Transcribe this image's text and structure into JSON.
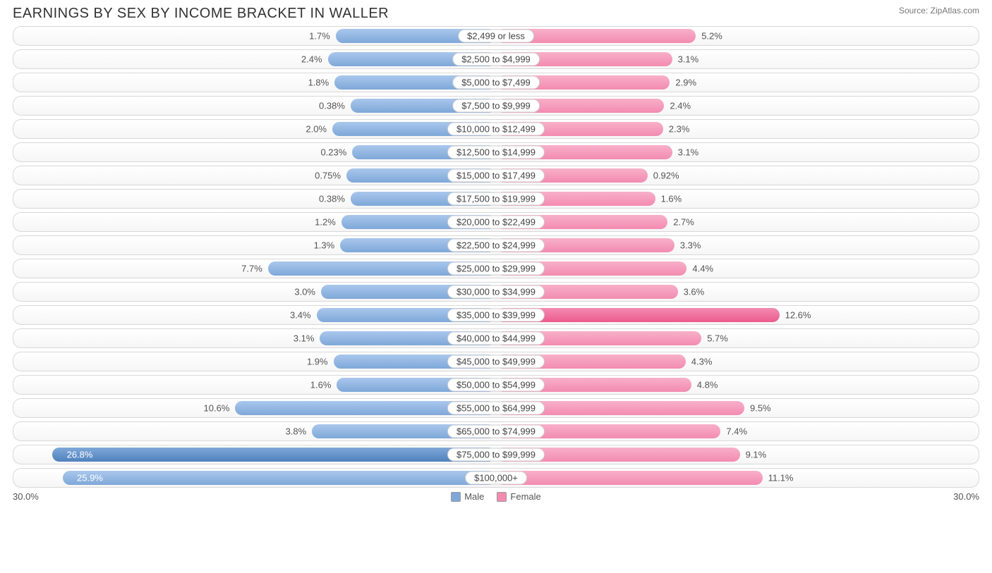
{
  "title": "EARNINGS BY SEX BY INCOME BRACKET IN WALLER",
  "source": "Source: ZipAtlas.com",
  "chart": {
    "type": "diverging-bar",
    "axis_max": 30.0,
    "axis_label_left": "30.0%",
    "axis_label_right": "30.0%",
    "male_color": "#7fa8d9",
    "male_max_color": "#4f81bd",
    "female_color": "#f38bb0",
    "female_max_color": "#ec5a8d",
    "row_border_color": "#d8d8d8",
    "row_bg_gradient": [
      "#ffffff",
      "#f6f6f6"
    ],
    "label_fontsize": 13,
    "title_fontsize": 20,
    "rows": [
      {
        "label": "$2,499 or less",
        "male": 1.7,
        "male_str": "1.7%",
        "female": 5.2,
        "female_str": "5.2%"
      },
      {
        "label": "$2,500 to $4,999",
        "male": 2.4,
        "male_str": "2.4%",
        "female": 3.1,
        "female_str": "3.1%"
      },
      {
        "label": "$5,000 to $7,499",
        "male": 1.8,
        "male_str": "1.8%",
        "female": 2.9,
        "female_str": "2.9%"
      },
      {
        "label": "$7,500 to $9,999",
        "male": 0.38,
        "male_str": "0.38%",
        "female": 2.4,
        "female_str": "2.4%"
      },
      {
        "label": "$10,000 to $12,499",
        "male": 2.0,
        "male_str": "2.0%",
        "female": 2.3,
        "female_str": "2.3%"
      },
      {
        "label": "$12,500 to $14,999",
        "male": 0.23,
        "male_str": "0.23%",
        "female": 3.1,
        "female_str": "3.1%"
      },
      {
        "label": "$15,000 to $17,499",
        "male": 0.75,
        "male_str": "0.75%",
        "female": 0.92,
        "female_str": "0.92%"
      },
      {
        "label": "$17,500 to $19,999",
        "male": 0.38,
        "male_str": "0.38%",
        "female": 1.6,
        "female_str": "1.6%"
      },
      {
        "label": "$20,000 to $22,499",
        "male": 1.2,
        "male_str": "1.2%",
        "female": 2.7,
        "female_str": "2.7%"
      },
      {
        "label": "$22,500 to $24,999",
        "male": 1.3,
        "male_str": "1.3%",
        "female": 3.3,
        "female_str": "3.3%"
      },
      {
        "label": "$25,000 to $29,999",
        "male": 7.7,
        "male_str": "7.7%",
        "female": 4.4,
        "female_str": "4.4%"
      },
      {
        "label": "$30,000 to $34,999",
        "male": 3.0,
        "male_str": "3.0%",
        "female": 3.6,
        "female_str": "3.6%"
      },
      {
        "label": "$35,000 to $39,999",
        "male": 3.4,
        "male_str": "3.4%",
        "female": 12.6,
        "female_str": "12.6%"
      },
      {
        "label": "$40,000 to $44,999",
        "male": 3.1,
        "male_str": "3.1%",
        "female": 5.7,
        "female_str": "5.7%"
      },
      {
        "label": "$45,000 to $49,999",
        "male": 1.9,
        "male_str": "1.9%",
        "female": 4.3,
        "female_str": "4.3%"
      },
      {
        "label": "$50,000 to $54,999",
        "male": 1.6,
        "male_str": "1.6%",
        "female": 4.8,
        "female_str": "4.8%"
      },
      {
        "label": "$55,000 to $64,999",
        "male": 10.6,
        "male_str": "10.6%",
        "female": 9.5,
        "female_str": "9.5%"
      },
      {
        "label": "$65,000 to $74,999",
        "male": 3.8,
        "male_str": "3.8%",
        "female": 7.4,
        "female_str": "7.4%"
      },
      {
        "label": "$75,000 to $99,999",
        "male": 26.8,
        "male_str": "26.8%",
        "female": 9.1,
        "female_str": "9.1%"
      },
      {
        "label": "$100,000+",
        "male": 25.9,
        "male_str": "25.9%",
        "female": 11.1,
        "female_str": "11.1%"
      }
    ],
    "legend": {
      "male": "Male",
      "female": "Female"
    },
    "label_pad_pct": 12.5
  }
}
